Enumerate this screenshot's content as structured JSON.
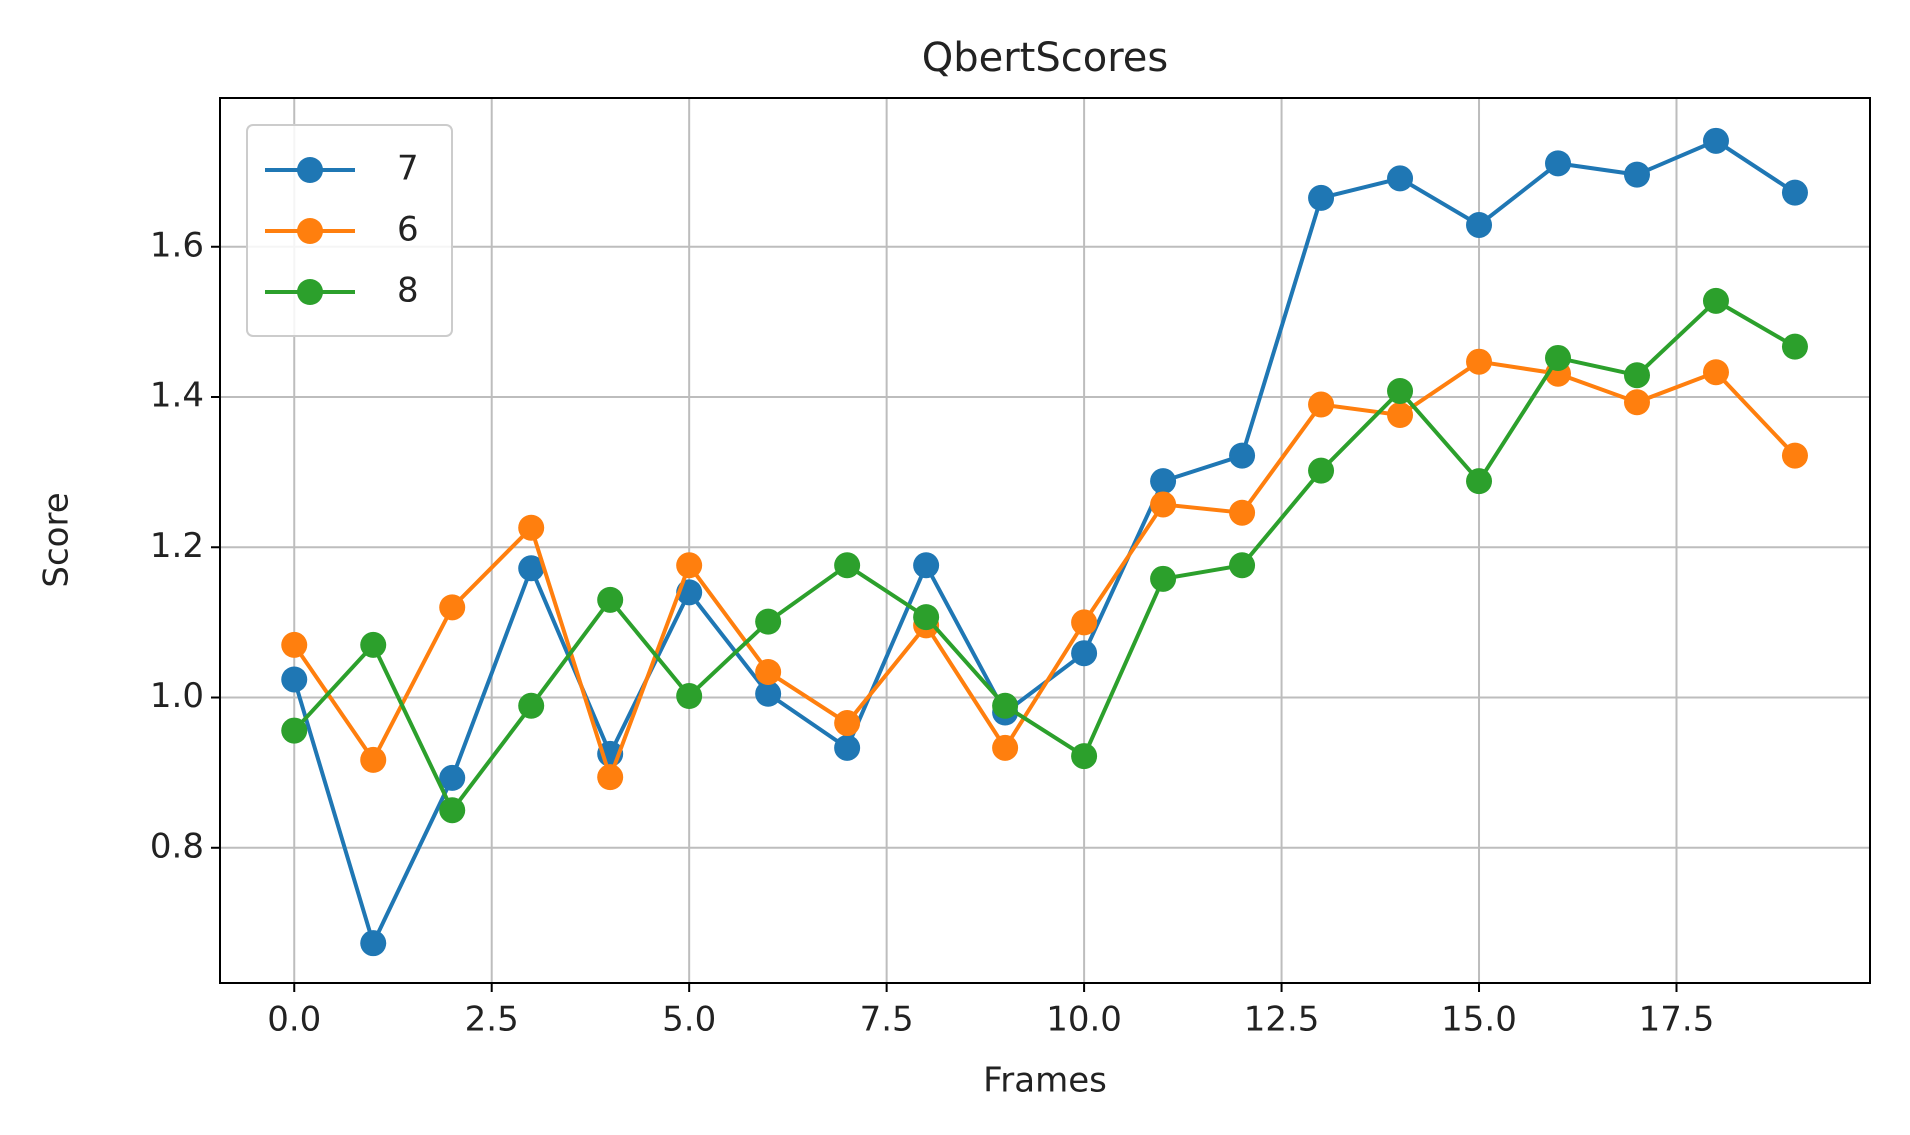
{
  "chart_data": {
    "type": "line",
    "title": "QbertScores",
    "x_label": "Frames",
    "y_label": "Score",
    "x": [
      0,
      1,
      2,
      3,
      4,
      5,
      6,
      7,
      8,
      9,
      10,
      11,
      12,
      13,
      14,
      15,
      16,
      17,
      18,
      19
    ],
    "series": [
      {
        "name": "7",
        "color": "#1f77b4",
        "values": [
          1.024,
          0.673,
          0.893,
          1.172,
          0.925,
          1.14,
          1.005,
          0.933,
          1.176,
          0.98,
          1.059,
          1.288,
          1.322,
          1.665,
          1.691,
          1.629,
          1.711,
          1.696,
          1.741,
          1.672
        ]
      },
      {
        "name": "6",
        "color": "#ff7f0e",
        "values": [
          1.07,
          0.917,
          1.12,
          1.226,
          0.894,
          1.176,
          1.034,
          0.966,
          1.096,
          0.933,
          1.1,
          1.257,
          1.246,
          1.39,
          1.376,
          1.447,
          1.431,
          1.393,
          1.433,
          1.322
        ]
      },
      {
        "name": "8",
        "color": "#2ca02c",
        "values": [
          0.956,
          1.07,
          0.85,
          0.989,
          1.13,
          1.002,
          1.101,
          1.176,
          1.107,
          0.989,
          0.922,
          1.158,
          1.176,
          1.302,
          1.408,
          1.288,
          1.452,
          1.429,
          1.528,
          1.467
        ]
      }
    ],
    "xlim": [
      -0.94,
      19.95
    ],
    "ylim": [
      0.62,
      1.798
    ],
    "xticks": [
      {
        "value": 0,
        "label": "0.0"
      },
      2.5,
      {
        "value": 5,
        "label": "5.0"
      },
      7.5,
      {
        "value": 10,
        "label": "10.0"
      },
      12.5,
      {
        "value": 15,
        "label": "15.0"
      },
      17.5
    ],
    "yticks": [
      0.8,
      {
        "value": 1,
        "label": "1.0"
      },
      1.2,
      1.4,
      1.6
    ],
    "grid": true,
    "legend": "upper-left"
  }
}
